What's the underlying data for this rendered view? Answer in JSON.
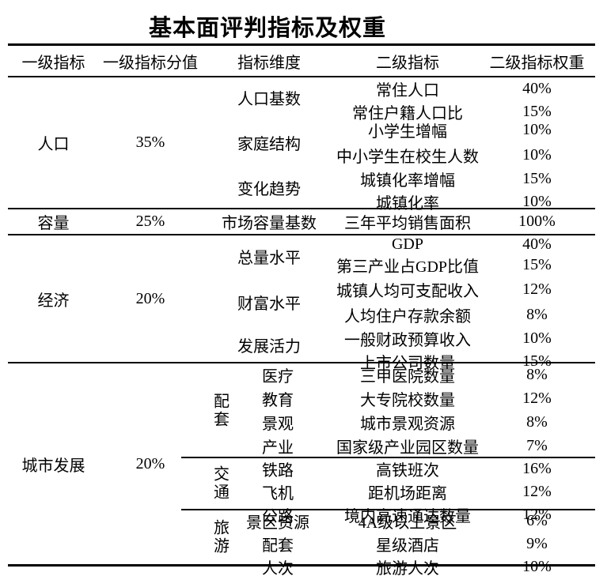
{
  "title": "基本面评判指标及权重",
  "columns": [
    "一级指标",
    "一级指标分值",
    "指标维度",
    "二级指标",
    "二级指标权重"
  ],
  "colors": {
    "text": "#000000",
    "background": "#ffffff",
    "rule": "#000000"
  },
  "sections": [
    {
      "name": "人口",
      "score": "35%",
      "groups": [
        {
          "dimension": "人口基数",
          "rows": [
            {
              "indicator": "常住人口",
              "weight": "40%"
            },
            {
              "indicator": "常住户籍人口比",
              "weight": "15%"
            }
          ]
        },
        {
          "dimension": "家庭结构",
          "rows": [
            {
              "indicator": "小学生增幅",
              "weight": "10%"
            },
            {
              "indicator": "中小学生在校生人数",
              "weight": "10%"
            }
          ]
        },
        {
          "dimension": "变化趋势",
          "rows": [
            {
              "indicator": "城镇化率增幅",
              "weight": "15%"
            },
            {
              "indicator": "城镇化率",
              "weight": "10%"
            }
          ]
        }
      ]
    },
    {
      "name": "容量",
      "score": "25%",
      "groups": [
        {
          "dimension": "市场容量基数",
          "rows": [
            {
              "indicator": "三年平均销售面积",
              "weight": "100%"
            }
          ]
        }
      ]
    },
    {
      "name": "经济",
      "score": "20%",
      "groups": [
        {
          "dimension": "总量水平",
          "rows": [
            {
              "indicator": "GDP",
              "weight": "40%"
            },
            {
              "indicator": "第三产业占GDP比值",
              "weight": "15%"
            }
          ]
        },
        {
          "dimension": "财富水平",
          "rows": [
            {
              "indicator": "城镇人均可支配收入",
              "weight": "12%"
            },
            {
              "indicator": "人均住户存款余额",
              "weight": "8%"
            }
          ]
        },
        {
          "dimension": "发展活力",
          "rows": [
            {
              "indicator": "一般财政预算收入",
              "weight": "10%"
            },
            {
              "indicator": "上市公司数量",
              "weight": "15%"
            }
          ]
        }
      ]
    },
    {
      "name": "城市发展",
      "score": "20%",
      "groups": [
        {
          "category": "配套",
          "rows": [
            {
              "dimension": "医疗",
              "indicator": "三甲医院数量",
              "weight": "8%"
            },
            {
              "dimension": "教育",
              "indicator": "大专院校数量",
              "weight": "12%"
            },
            {
              "dimension": "景观",
              "indicator": "城市景观资源",
              "weight": "8%"
            },
            {
              "dimension": "产业",
              "indicator": "国家级产业园区数量",
              "weight": "7%"
            }
          ]
        },
        {
          "category": "交通",
          "rows": [
            {
              "dimension": "铁路",
              "indicator": "高铁班次",
              "weight": "16%"
            },
            {
              "dimension": "飞机",
              "indicator": "距机场距离",
              "weight": "12%"
            },
            {
              "dimension": "公路",
              "indicator": "境内高速通达数量",
              "weight": "12%"
            }
          ]
        },
        {
          "category": "旅游",
          "rows": [
            {
              "dimension": "景区资源",
              "indicator": "4A级以上景区",
              "weight": "6%"
            },
            {
              "dimension": "配套",
              "indicator": "星级酒店",
              "weight": "9%"
            },
            {
              "dimension": "人次",
              "indicator": "旅游人次",
              "weight": "10%"
            }
          ]
        }
      ]
    }
  ]
}
